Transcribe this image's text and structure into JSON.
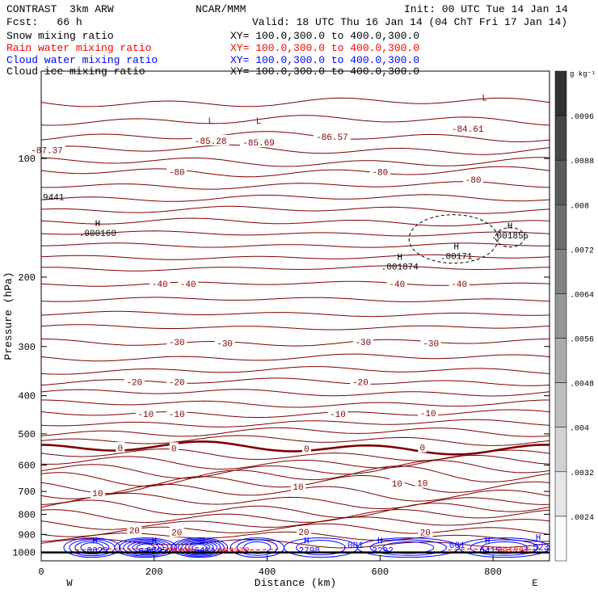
{
  "header": {
    "title": "CONTRAST  3km ARW",
    "org": "NCAR/MMM",
    "init": "Init: 00 UTC Tue 14 Jan 14",
    "fcst": "Fcst:   66 h",
    "valid": "Valid: 18 UTC Thu 16 Jan 14 (04 ChT Fri 17 Jan 14)"
  },
  "fields": [
    {
      "name": "Snow mixing ratio",
      "xy": "XY= 100.0,300.0 to 400.0,300.0",
      "color": "#000000"
    },
    {
      "name": "Rain water mixing ratio",
      "xy": "XY= 100.0,300.0 to 400.0,300.0",
      "color": "#ff0000"
    },
    {
      "name": "Cloud water mixing ratio",
      "xy": "XY= 100.0,300.0 to 400.0,300.0",
      "color": "#0000ff"
    },
    {
      "name": "Cloud ice mixing ratio",
      "xy": "XY= 100.0,300.0 to 400.0,300.0",
      "color": "#000000"
    }
  ],
  "colors": {
    "temperature": "#7f0000",
    "rain": "#ff0000",
    "cloud_water": "#0000ff",
    "snow": "#000000"
  },
  "chart_data": {
    "type": "contour",
    "xlabel": "Distance (km)",
    "ylabel": "Pressure (hPa)",
    "x_range": [
      0,
      900
    ],
    "y_range": [
      1050,
      60
    ],
    "x_ticks": [
      "0",
      "200",
      "400",
      "600",
      "800"
    ],
    "y_ticks": [
      "100",
      "200",
      "300",
      "400",
      "500",
      "600",
      "700",
      "800",
      "900",
      "1000"
    ],
    "x_end_labels": {
      "west": "W",
      "east": "E"
    },
    "colorbar": {
      "unit": "g kg⁻¹",
      "levels": [
        ".0024",
        ".0032",
        ".004",
        ".0048",
        ".0056",
        ".0064",
        ".0072",
        ".008",
        ".0088",
        ".0096"
      ]
    },
    "temperature_labels": [
      {
        "t": "-87.37",
        "x": 10,
        "p": 95
      },
      {
        "t": "-85.28",
        "x": 300,
        "p": 90
      },
      {
        "t": "-85.69",
        "x": 385,
        "p": 91
      },
      {
        "t": "-86.57",
        "x": 515,
        "p": 88
      },
      {
        "t": "-84.61",
        "x": 755,
        "p": 84
      },
      {
        "t": "-80",
        "x": 240,
        "p": 108
      },
      {
        "t": "-80",
        "x": 600,
        "p": 108
      },
      {
        "t": "-80",
        "x": 765,
        "p": 113
      },
      {
        "t": "-40",
        "x": 210,
        "p": 208
      },
      {
        "t": "-40",
        "x": 260,
        "p": 208
      },
      {
        "t": "-40",
        "x": 630,
        "p": 208
      },
      {
        "t": "-40",
        "x": 740,
        "p": 208
      },
      {
        "t": "-30",
        "x": 240,
        "p": 292
      },
      {
        "t": "-30",
        "x": 325,
        "p": 294
      },
      {
        "t": "-30",
        "x": 570,
        "p": 292
      },
      {
        "t": "-30",
        "x": 690,
        "p": 294
      },
      {
        "t": "-20",
        "x": 165,
        "p": 369
      },
      {
        "t": "-20",
        "x": 240,
        "p": 369
      },
      {
        "t": "-20",
        "x": 565,
        "p": 369
      },
      {
        "t": "-10",
        "x": 185,
        "p": 445
      },
      {
        "t": "-10",
        "x": 240,
        "p": 444
      },
      {
        "t": "-10",
        "x": 525,
        "p": 445
      },
      {
        "t": "-10",
        "x": 685,
        "p": 442
      },
      {
        "t": "0",
        "x": 140,
        "p": 542
      },
      {
        "t": "0",
        "x": 235,
        "p": 543
      },
      {
        "t": "0",
        "x": 470,
        "p": 545
      },
      {
        "t": "0",
        "x": 675,
        "p": 541
      },
      {
        "t": "10",
        "x": 100,
        "p": 706
      },
      {
        "t": "10",
        "x": 455,
        "p": 680
      },
      {
        "t": "10",
        "x": 630,
        "p": 668
      },
      {
        "t": "10",
        "x": 675,
        "p": 666
      },
      {
        "t": "20",
        "x": 165,
        "p": 877
      },
      {
        "t": "20",
        "x": 240,
        "p": 887
      },
      {
        "t": "20",
        "x": 465,
        "p": 886
      },
      {
        "t": "20",
        "x": 680,
        "p": 887
      }
    ],
    "temperature_lines": [
      {
        "p": 72,
        "a": 4
      },
      {
        "p": 80,
        "a": 4
      },
      {
        "p": 88,
        "a": 4
      },
      {
        "p": 95,
        "a": 4
      },
      {
        "p": 102,
        "a": 4
      },
      {
        "p": 108,
        "a": 4
      },
      {
        "p": 117,
        "a": 3
      },
      {
        "p": 126,
        "a": 3
      },
      {
        "p": 135,
        "a": 3
      },
      {
        "p": 145,
        "a": 3
      },
      {
        "p": 155,
        "a": 2
      },
      {
        "p": 166,
        "a": 2
      },
      {
        "p": 178,
        "a": 2
      },
      {
        "p": 190,
        "a": 2
      },
      {
        "p": 208,
        "a": 2
      },
      {
        "p": 228,
        "a": 2
      },
      {
        "p": 248,
        "a": 2
      },
      {
        "p": 268,
        "a": 2
      },
      {
        "p": 293,
        "a": 3
      },
      {
        "p": 320,
        "a": 3
      },
      {
        "p": 345,
        "a": 3
      },
      {
        "p": 369,
        "a": 3
      },
      {
        "p": 393,
        "a": 3
      },
      {
        "p": 419,
        "a": 3
      },
      {
        "p": 444,
        "a": 3
      },
      {
        "p": 470,
        "a": 3
      },
      {
        "p": 495,
        "a": 4
      },
      {
        "p": 520,
        "a": 4
      },
      {
        "p": 543,
        "a": 5,
        "bold": true
      },
      {
        "p": 565,
        "a": 5
      },
      {
        "p": 590,
        "a": 6
      },
      {
        "p": 615,
        "a": 7
      },
      {
        "p": 640,
        "a": 8
      },
      {
        "p": 672,
        "a": 8
      },
      {
        "p": 705,
        "a": 7
      },
      {
        "p": 740,
        "a": 6
      },
      {
        "p": 775,
        "a": 7
      },
      {
        "p": 808,
        "a": 6
      },
      {
        "p": 843,
        "a": 5
      },
      {
        "p": 878,
        "a": 5
      },
      {
        "p": 912,
        "a": 4
      },
      {
        "p": 948,
        "a": 4
      }
    ],
    "max_labels": [
      {
        "t": ".000160",
        "x": 100,
        "p": 153,
        "h": "H",
        "color": "#000000"
      },
      {
        "t": ".00171",
        "x": 735,
        "p": 175,
        "h": "H",
        "color": "#000000"
      },
      {
        "t": ".001855",
        "x": 830,
        "p": 155,
        "h": "H",
        "color": "#000000"
      },
      {
        "t": ".001874",
        "x": 635,
        "p": 186,
        "h": "H",
        "color": "#000000"
      },
      {
        "t": ".0028",
        "x": 95,
        "p": 976,
        "h": "H",
        "color": "#0000ff"
      },
      {
        "t": ".6795",
        "x": 200,
        "p": 976,
        "h": "H",
        "color": "#0000ff"
      },
      {
        "t": ".6411",
        "x": 285,
        "p": 976,
        "h": "H",
        "color": "#0000ff"
      },
      {
        "t": ".2798",
        "x": 470,
        "p": 976,
        "h": "H",
        "color": "#0000ff"
      },
      {
        "t": ".3292",
        "x": 600,
        "p": 976,
        "h": "H",
        "color": "#0000ff"
      },
      {
        "t": ".6415",
        "x": 790,
        "p": 976,
        "h": "H",
        "color": "#0000ff"
      },
      {
        "t": ".523",
        "x": 880,
        "p": 958,
        "h": "H",
        "color": "#0000ff"
      }
    ],
    "extra_labels": [
      {
        "t": "9441",
        "x": 0,
        "p": 125,
        "color": "#000000"
      },
      {
        "t": ".00496",
        "x": 210,
        "p": 987,
        "color": "#ff0000"
      },
      {
        "t": ".003372",
        "x": 300,
        "p": 987,
        "color": "#ff0000"
      },
      {
        "t": ".001237",
        "x": 795,
        "p": 987,
        "color": "#ff0000"
      },
      {
        "t": ".001",
        "x": 160,
        "p": 989,
        "color": "#0000ff"
      },
      {
        "t": ".001",
        "x": 530,
        "p": 955,
        "color": "#0000ff"
      },
      {
        "t": ".001",
        "x": 710,
        "p": 955,
        "color": "#0000ff"
      }
    ],
    "low_labels": [
      {
        "t": "L",
        "x": 300,
        "p": 80
      },
      {
        "t": "L",
        "x": 385,
        "p": 80
      },
      {
        "t": "L",
        "x": 785,
        "p": 70
      }
    ],
    "cloud_water_clusters": [
      {
        "x0": 40,
        "x1": 140,
        "n": 4
      },
      {
        "x0": 130,
        "x1": 240,
        "n": 6
      },
      {
        "x0": 230,
        "x1": 330,
        "n": 7
      },
      {
        "x0": 335,
        "x1": 430,
        "n": 3
      },
      {
        "x0": 430,
        "x1": 560,
        "n": 2
      },
      {
        "x0": 560,
        "x1": 740,
        "n": 3
      },
      {
        "x0": 740,
        "x1": 900,
        "n": 3
      }
    ],
    "ice_cloud": {
      "x": 730,
      "p": 160,
      "rx": 55,
      "rp": 30
    }
  }
}
